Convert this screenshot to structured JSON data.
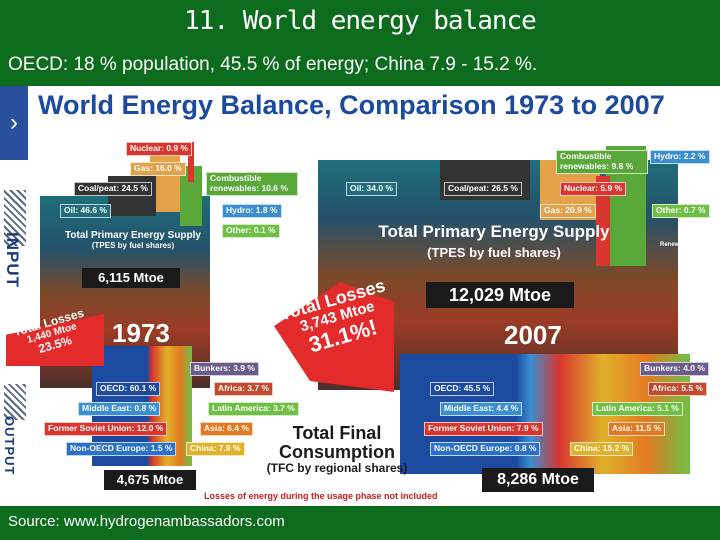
{
  "slide": {
    "title": "11. World energy balance",
    "subtitle": "OECD: 18 % population, 45.5 % of energy; China 7.9 - 15.2 %.",
    "source": "Source: www.hydrogenambassadors.com"
  },
  "figure": {
    "heading": "World Energy Balance, Comparison 1973 to 2007",
    "input_label": "INPUT",
    "output_label": "OUTPUT",
    "tpes_label": "Total Primary Energy Supply",
    "tpes_sub": "(TPES by fuel shares)",
    "tfc_title": "Total Final Consumption",
    "tfc_sub": "(TFC by regional shares)",
    "footnote": "Losses of energy during the usage phase not included",
    "renewables_tag": "Renewables",
    "y1973": {
      "year": "1973",
      "tpes_total": "6,115 Mtoe",
      "tfc_total": "4,675 Mtoe",
      "losses_title": "Total Losses",
      "losses_mtoe": "1,440 Mtoe",
      "losses_pct": "23.5%",
      "fuels": {
        "nuclear": "Nuclear: 0.9 %",
        "gas": "Gas: 16.0 %",
        "combustible": "Combustible renewables: 10.6 %",
        "coal": "Coal/peat: 24.5 %",
        "oil": "Oil: 46.6 %",
        "hydro": "Hydro: 1.8 %",
        "other": "Other: 0.1 %"
      },
      "regions": {
        "bunkers": "Bunkers: 3.9 %",
        "oecd": "OECD: 60.1 %",
        "africa": "Africa: 3.7 %",
        "middle_east": "Middle East: 0.8 %",
        "latin_america": "Latin America: 3.7 %",
        "fsu": "Former Soviet Union: 12.0 %",
        "asia": "Asia: 6.4 %",
        "non_oecd_europe": "Non-OECD Europe: 1.5 %",
        "china": "China: 7.9 %"
      }
    },
    "y2007": {
      "year": "2007",
      "tpes_total": "12,029 Mtoe",
      "tfc_total": "8,286 Mtoe",
      "losses_title": "Total Losses",
      "losses_mtoe": "3,743 Mtoe",
      "losses_pct": "31.1%!",
      "fuels": {
        "combustible": "Combustible renewables: 9.8 %",
        "hydro": "Hydro: 2.2 %",
        "oil": "Oil: 34.0 %",
        "coal": "Coal/peat: 26.5 %",
        "nuclear": "Nuclear: 5.9 %",
        "gas": "Gas: 20.9 %",
        "other": "Other: 0.7 %"
      },
      "regions": {
        "bunkers": "Bunkers: 4.0 %",
        "oecd": "OECD: 45.5 %",
        "africa": "Africa: 5.5 %",
        "middle_east": "Middle East: 4.4 %",
        "latin_america": "Latin America: 5.1 %",
        "fsu": "Former Soviet Union: 7.9 %",
        "asia": "Asia: 11.5 %",
        "non_oecd_europe": "Non-OECD Europe: 0.8 %",
        "china": "China: 15.2 %"
      }
    },
    "colors": {
      "oil": "#1f6e7a",
      "coal": "#333333",
      "gas": "#e3a24a",
      "nuclear": "#d8362e",
      "combustible": "#5aa83a",
      "hydro": "#3b8fd1",
      "other": "#6fbf45",
      "losses": "#e32b2b",
      "oecd": "#1b4a9e",
      "middle_east": "#3b8fd1",
      "fsu": "#d8362e",
      "non_oecd_europe": "#2a72c9",
      "china": "#e0b12a",
      "asia": "#e37a22",
      "latin_america": "#6fbf45",
      "africa": "#c44a2e",
      "bunkers": "#6b5a8c"
    }
  }
}
